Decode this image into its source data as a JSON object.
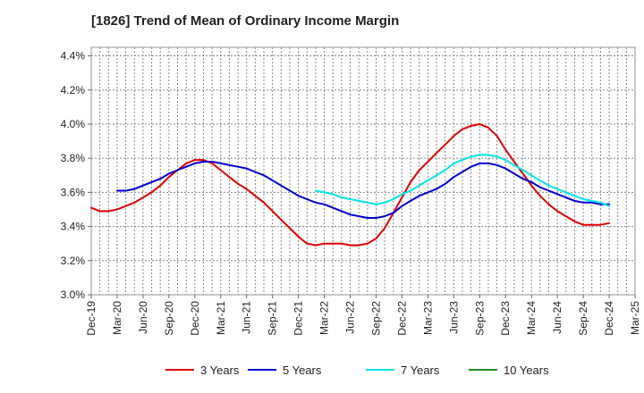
{
  "chart_data": {
    "type": "line",
    "title": "[1826]  Trend of Mean of Ordinary Income Margin",
    "xlabel": "",
    "ylabel": "",
    "y_ticks": [
      "3.0%",
      "3.2%",
      "3.4%",
      "3.6%",
      "3.8%",
      "4.0%",
      "4.2%",
      "4.4%"
    ],
    "ylim": [
      3.0,
      4.45
    ],
    "x_ticks": [
      "Dec-19",
      "Mar-20",
      "Jun-20",
      "Sep-20",
      "Dec-20",
      "Mar-21",
      "Jun-21",
      "Sep-21",
      "Dec-21",
      "Mar-22",
      "Jun-22",
      "Sep-22",
      "Dec-22",
      "Mar-23",
      "Jun-23",
      "Sep-23",
      "Dec-23",
      "Mar-24",
      "Jun-24",
      "Sep-24",
      "Dec-24",
      "Mar-25"
    ],
    "x_unit": "quarter index, 0 = Dec-19",
    "xlim": [
      0,
      21
    ],
    "grid": true,
    "legend_position": "bottom",
    "series": [
      {
        "name": "3 Years",
        "color": "#dd0000",
        "points": [
          [
            0,
            3.51
          ],
          [
            0.33,
            3.49
          ],
          [
            0.67,
            3.49
          ],
          [
            1,
            3.5
          ],
          [
            1.33,
            3.52
          ],
          [
            1.67,
            3.54
          ],
          [
            2,
            3.57
          ],
          [
            2.33,
            3.6
          ],
          [
            2.67,
            3.64
          ],
          [
            3,
            3.69
          ],
          [
            3.33,
            3.73
          ],
          [
            3.67,
            3.77
          ],
          [
            4,
            3.79
          ],
          [
            4.33,
            3.79
          ],
          [
            4.67,
            3.77
          ],
          [
            5,
            3.73
          ],
          [
            5.33,
            3.69
          ],
          [
            5.67,
            3.65
          ],
          [
            6,
            3.62
          ],
          [
            6.33,
            3.58
          ],
          [
            6.67,
            3.54
          ],
          [
            7,
            3.49
          ],
          [
            7.33,
            3.44
          ],
          [
            7.67,
            3.39
          ],
          [
            8,
            3.34
          ],
          [
            8.33,
            3.3
          ],
          [
            8.67,
            3.29
          ],
          [
            9,
            3.3
          ],
          [
            9.33,
            3.3
          ],
          [
            9.67,
            3.3
          ],
          [
            10,
            3.29
          ],
          [
            10.33,
            3.29
          ],
          [
            10.67,
            3.3
          ],
          [
            11,
            3.33
          ],
          [
            11.33,
            3.39
          ],
          [
            11.67,
            3.48
          ],
          [
            12,
            3.57
          ],
          [
            12.33,
            3.66
          ],
          [
            12.67,
            3.73
          ],
          [
            13,
            3.78
          ],
          [
            13.33,
            3.83
          ],
          [
            13.67,
            3.88
          ],
          [
            14,
            3.93
          ],
          [
            14.33,
            3.97
          ],
          [
            14.67,
            3.99
          ],
          [
            15,
            4.0
          ],
          [
            15.33,
            3.98
          ],
          [
            15.67,
            3.93
          ],
          [
            16,
            3.85
          ],
          [
            16.33,
            3.78
          ],
          [
            16.67,
            3.71
          ],
          [
            17,
            3.64
          ],
          [
            17.33,
            3.58
          ],
          [
            17.67,
            3.53
          ],
          [
            18,
            3.49
          ],
          [
            18.33,
            3.46
          ],
          [
            18.67,
            3.43
          ],
          [
            19,
            3.41
          ],
          [
            19.33,
            3.41
          ],
          [
            19.67,
            3.41
          ],
          [
            20,
            3.42
          ]
        ]
      },
      {
        "name": "5 Years",
        "color": "#0000cc",
        "points": [
          [
            1,
            3.61
          ],
          [
            1.33,
            3.61
          ],
          [
            1.67,
            3.62
          ],
          [
            2,
            3.64
          ],
          [
            2.33,
            3.66
          ],
          [
            2.67,
            3.68
          ],
          [
            3,
            3.71
          ],
          [
            3.33,
            3.73
          ],
          [
            3.67,
            3.75
          ],
          [
            4,
            3.77
          ],
          [
            4.33,
            3.78
          ],
          [
            4.67,
            3.78
          ],
          [
            5,
            3.77
          ],
          [
            5.33,
            3.76
          ],
          [
            5.67,
            3.75
          ],
          [
            6,
            3.74
          ],
          [
            6.33,
            3.72
          ],
          [
            6.67,
            3.7
          ],
          [
            7,
            3.67
          ],
          [
            7.33,
            3.64
          ],
          [
            7.67,
            3.61
          ],
          [
            8,
            3.58
          ],
          [
            8.33,
            3.56
          ],
          [
            8.67,
            3.54
          ],
          [
            9,
            3.53
          ],
          [
            9.33,
            3.51
          ],
          [
            9.67,
            3.49
          ],
          [
            10,
            3.47
          ],
          [
            10.33,
            3.46
          ],
          [
            10.67,
            3.45
          ],
          [
            11,
            3.45
          ],
          [
            11.33,
            3.46
          ],
          [
            11.67,
            3.48
          ],
          [
            12,
            3.52
          ],
          [
            12.33,
            3.55
          ],
          [
            12.67,
            3.58
          ],
          [
            13,
            3.6
          ],
          [
            13.33,
            3.62
          ],
          [
            13.67,
            3.65
          ],
          [
            14,
            3.69
          ],
          [
            14.33,
            3.72
          ],
          [
            14.67,
            3.75
          ],
          [
            15,
            3.77
          ],
          [
            15.33,
            3.77
          ],
          [
            15.67,
            3.76
          ],
          [
            16,
            3.74
          ],
          [
            16.33,
            3.71
          ],
          [
            16.67,
            3.68
          ],
          [
            17,
            3.66
          ],
          [
            17.33,
            3.63
          ],
          [
            17.67,
            3.61
          ],
          [
            18,
            3.59
          ],
          [
            18.33,
            3.57
          ],
          [
            18.67,
            3.55
          ],
          [
            19,
            3.54
          ],
          [
            19.33,
            3.54
          ],
          [
            19.67,
            3.53
          ],
          [
            20,
            3.53
          ]
        ]
      },
      {
        "name": "7 Years",
        "color": "#00e5e5",
        "points": [
          [
            8.67,
            3.61
          ],
          [
            9,
            3.6
          ],
          [
            9.33,
            3.59
          ],
          [
            9.67,
            3.57
          ],
          [
            10,
            3.56
          ],
          [
            10.33,
            3.55
          ],
          [
            10.67,
            3.54
          ],
          [
            11,
            3.53
          ],
          [
            11.33,
            3.54
          ],
          [
            11.67,
            3.56
          ],
          [
            12,
            3.59
          ],
          [
            12.33,
            3.61
          ],
          [
            12.67,
            3.64
          ],
          [
            13,
            3.67
          ],
          [
            13.33,
            3.7
          ],
          [
            13.67,
            3.73
          ],
          [
            14,
            3.77
          ],
          [
            14.33,
            3.79
          ],
          [
            14.67,
            3.81
          ],
          [
            15,
            3.82
          ],
          [
            15.33,
            3.82
          ],
          [
            15.67,
            3.81
          ],
          [
            16,
            3.79
          ],
          [
            16.33,
            3.76
          ],
          [
            16.67,
            3.73
          ],
          [
            17,
            3.7
          ],
          [
            17.33,
            3.67
          ],
          [
            17.67,
            3.64
          ],
          [
            18,
            3.62
          ],
          [
            18.33,
            3.6
          ],
          [
            18.67,
            3.58
          ],
          [
            19,
            3.56
          ],
          [
            19.33,
            3.55
          ],
          [
            19.67,
            3.54
          ],
          [
            20,
            3.52
          ]
        ]
      },
      {
        "name": "10 Years",
        "color": "#228b22",
        "points": []
      }
    ]
  }
}
